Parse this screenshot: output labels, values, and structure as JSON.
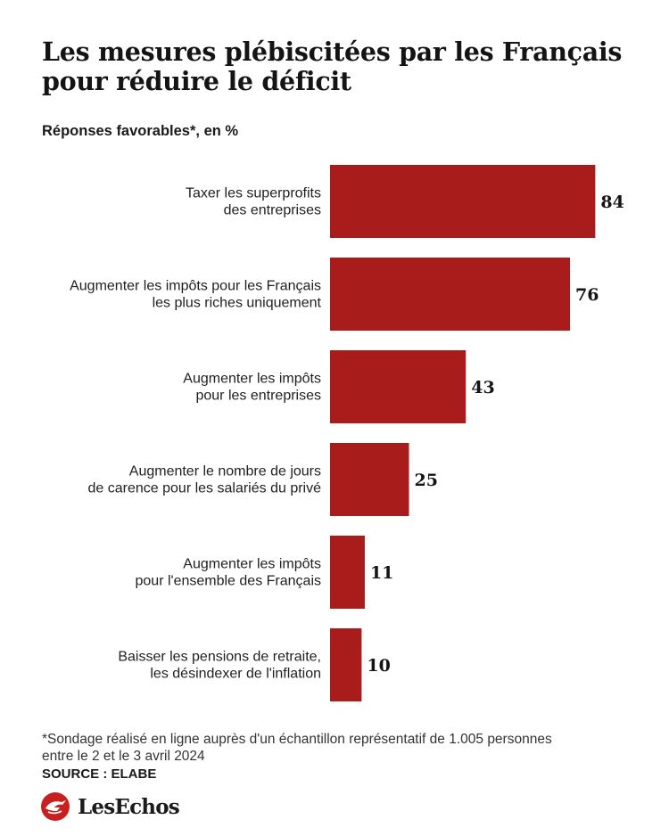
{
  "title_lines": [
    "Les mesures plébiscitées par les Français",
    "pour réduire le déficit"
  ],
  "subtitle": "Réponses favorables*, en %",
  "chart_data": {
    "type": "bar",
    "orientation": "horizontal",
    "categories": [
      [
        "Taxer les superprofits",
        "des entreprises"
      ],
      [
        "Augmenter les impôts pour les Français",
        "les plus riches uniquement"
      ],
      [
        "Augmenter les impôts",
        "pour les entreprises"
      ],
      [
        "Augmenter le nombre de jours",
        "de carence pour les salariés du privé"
      ],
      [
        "Augmenter les impôts",
        "pour l'ensemble des Français"
      ],
      [
        "Baisser les pensions de retraite,",
        "les désindexer de l'inflation"
      ]
    ],
    "values": [
      84,
      76,
      43,
      25,
      11,
      10
    ],
    "unit": "%",
    "bar_color": "#a81c1c",
    "grid": false
  },
  "footnote_lines": [
    "*Sondage réalisé en ligne auprès d'un échantillon représentatif de 1.005 personnes",
    "entre le 2 et le 3 avril 2024"
  ],
  "source": "SOURCE : ELABE",
  "brand": {
    "name": "LesEchos",
    "logo_icon": "les-echos-logo-icon",
    "logo_color": "#c8201e"
  }
}
